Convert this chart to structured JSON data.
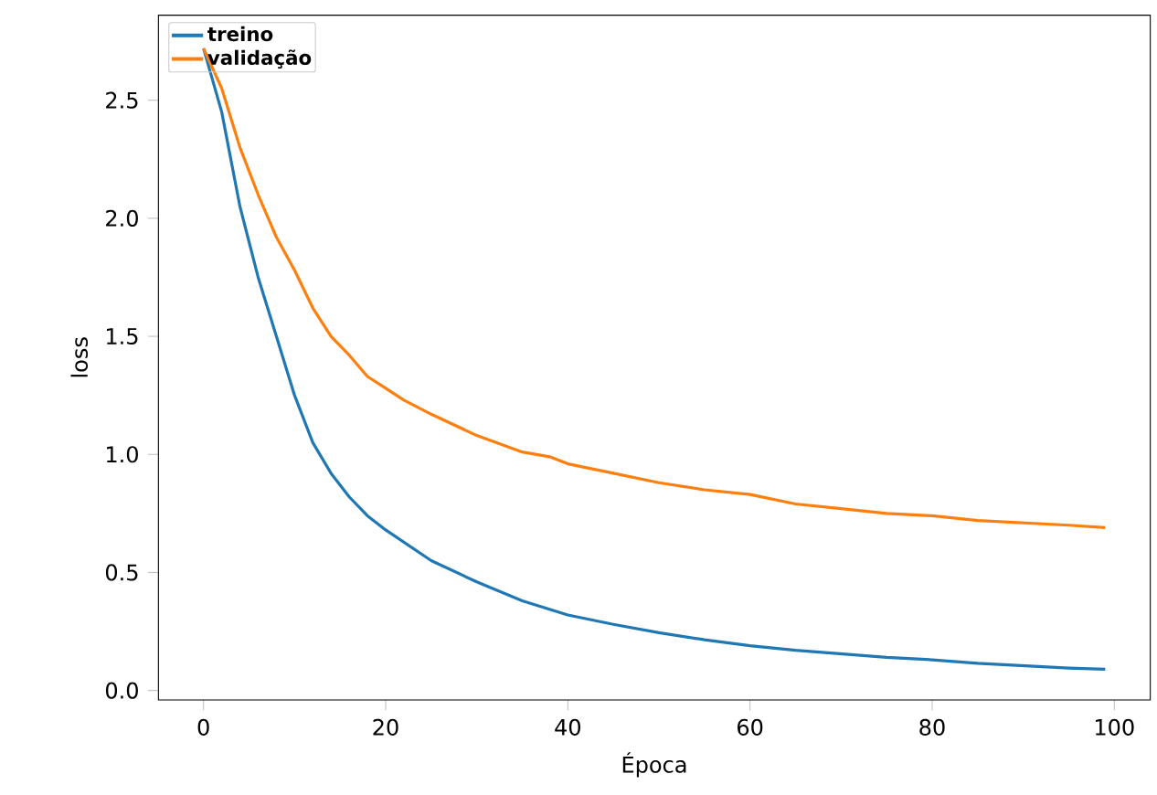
{
  "chart_data": {
    "type": "line",
    "xlabel": "Época",
    "ylabel": "loss",
    "xlim": [
      -4.95,
      103.95
    ],
    "ylim": [
      -0.04,
      2.86
    ],
    "xticks": [
      0,
      20,
      40,
      60,
      80,
      100
    ],
    "yticks": [
      {
        "value": 0,
        "label": "0.0"
      },
      0.5,
      {
        "value": 1,
        "label": "1.0"
      },
      1.5,
      {
        "value": 2,
        "label": "2.0"
      },
      2.5
    ],
    "legend": "top left",
    "grid": false,
    "series": [
      {
        "name": "treino",
        "color": "#1f77b4",
        "x": [
          0,
          2,
          4,
          6,
          8,
          10,
          12,
          14,
          16,
          18,
          20,
          25,
          30,
          35,
          40,
          45,
          50,
          55,
          60,
          65,
          70,
          75,
          80,
          85,
          90,
          95,
          99
        ],
        "values": [
          2.72,
          2.45,
          2.05,
          1.75,
          1.5,
          1.25,
          1.05,
          0.92,
          0.82,
          0.74,
          0.68,
          0.55,
          0.46,
          0.38,
          0.32,
          0.28,
          0.245,
          0.215,
          0.19,
          0.17,
          0.155,
          0.14,
          0.13,
          0.115,
          0.105,
          0.095,
          0.09
        ]
      },
      {
        "name": "validação",
        "color": "#ff7f0e",
        "x": [
          0,
          2,
          4,
          6,
          8,
          10,
          12,
          14,
          16,
          18,
          20,
          22,
          25,
          30,
          35,
          38,
          40,
          45,
          50,
          55,
          60,
          65,
          70,
          75,
          80,
          85,
          90,
          95,
          99
        ],
        "values": [
          2.72,
          2.55,
          2.3,
          2.1,
          1.92,
          1.78,
          1.62,
          1.5,
          1.42,
          1.33,
          1.28,
          1.23,
          1.17,
          1.08,
          1.01,
          0.99,
          0.96,
          0.92,
          0.88,
          0.85,
          0.83,
          0.79,
          0.77,
          0.75,
          0.74,
          0.72,
          0.71,
          0.7,
          0.69
        ]
      }
    ]
  }
}
